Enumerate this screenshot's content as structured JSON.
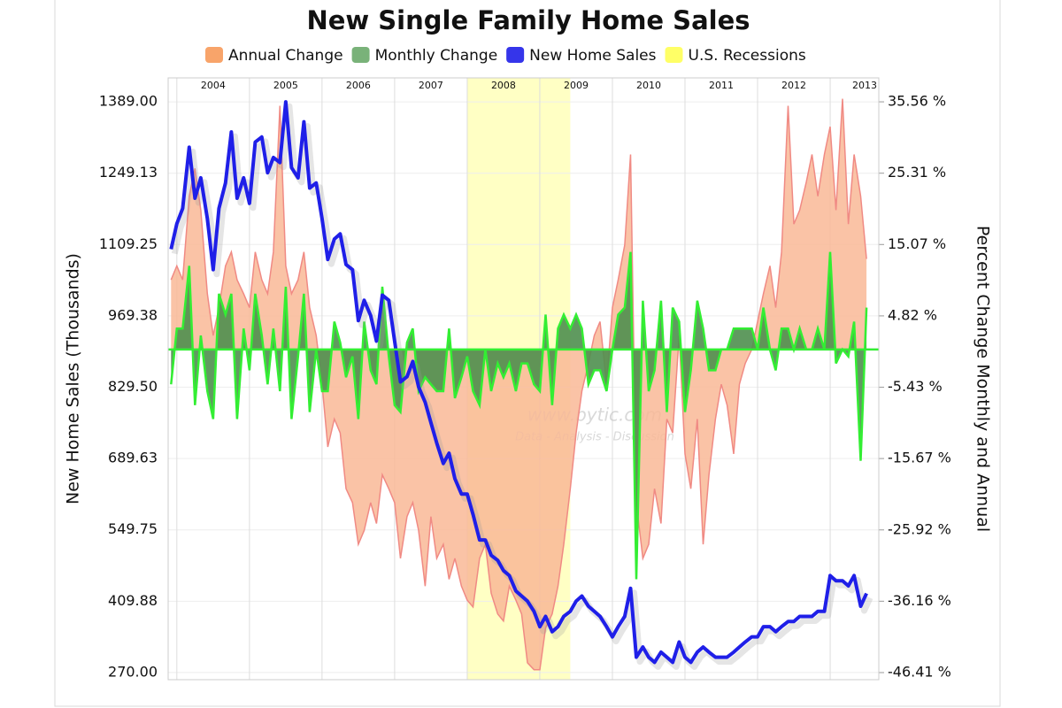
{
  "chart_data": {
    "type": "line",
    "title": "New Single Family Home Sales",
    "y_label": "New Home Sales (Thousands)",
    "y2_label": "Percent Change Monthly and Annual",
    "watermark": [
      "www.bytic.com",
      "Data - Analysis - Discussion"
    ],
    "grid": true,
    "xlim": [
      2003.88,
      2013.67
    ],
    "xticks": [
      2004,
      2005,
      2006,
      2007,
      2008,
      2009,
      2010,
      2011,
      2012,
      2013
    ],
    "ylim": [
      256,
      1436
    ],
    "yticks": [
      {
        "value": 1389,
        "label": "1389.00"
      },
      {
        "value": 1249.13,
        "label": "1249.13"
      },
      {
        "value": 1109.25,
        "label": "1109.25"
      },
      {
        "value": 969.38,
        "label": "969.38"
      },
      {
        "value": 829.5,
        "label": "829.50"
      },
      {
        "value": 689.63,
        "label": "689.63"
      },
      {
        "value": 549.75,
        "label": "549.75"
      },
      {
        "value": 409.88,
        "label": "409.88"
      },
      {
        "value": 270,
        "label": "270.00"
      }
    ],
    "y2lim": [
      -47.43,
      39.0
    ],
    "y2ticks": [
      {
        "value": 35.56,
        "label": "35.56 %"
      },
      {
        "value": 25.31,
        "label": "25.31 %"
      },
      {
        "value": 15.07,
        "label": "15.07 %"
      },
      {
        "value": 4.82,
        "label": "4.82 %"
      },
      {
        "value": -5.43,
        "label": "-5.43 %"
      },
      {
        "value": -15.67,
        "label": "-15.67 %"
      },
      {
        "value": -25.92,
        "label": "-25.92 %"
      },
      {
        "value": -36.16,
        "label": "-36.16 %"
      },
      {
        "value": -46.41,
        "label": "-46.41 %"
      }
    ],
    "recession": {
      "name": "U.S. Recessions",
      "color": "#ffff55",
      "start": 2008.0,
      "end": 2009.42
    },
    "x": [
      2003.92,
      2004.0,
      2004.08,
      2004.17,
      2004.25,
      2004.33,
      2004.42,
      2004.5,
      2004.58,
      2004.67,
      2004.75,
      2004.83,
      2004.92,
      2005.0,
      2005.08,
      2005.17,
      2005.25,
      2005.33,
      2005.42,
      2005.5,
      2005.58,
      2005.67,
      2005.75,
      2005.83,
      2005.92,
      2006.0,
      2006.08,
      2006.17,
      2006.25,
      2006.33,
      2006.42,
      2006.5,
      2006.58,
      2006.67,
      2006.75,
      2006.83,
      2006.92,
      2007.0,
      2007.08,
      2007.17,
      2007.25,
      2007.33,
      2007.42,
      2007.5,
      2007.58,
      2007.67,
      2007.75,
      2007.83,
      2007.92,
      2008.0,
      2008.08,
      2008.17,
      2008.25,
      2008.33,
      2008.42,
      2008.5,
      2008.58,
      2008.67,
      2008.75,
      2008.83,
      2008.92,
      2009.0,
      2009.08,
      2009.17,
      2009.25,
      2009.33,
      2009.42,
      2009.5,
      2009.58,
      2009.67,
      2009.75,
      2009.83,
      2009.92,
      2010.0,
      2010.08,
      2010.17,
      2010.25,
      2010.33,
      2010.42,
      2010.5,
      2010.58,
      2010.67,
      2010.75,
      2010.83,
      2010.92,
      2011.0,
      2011.08,
      2011.17,
      2011.25,
      2011.33,
      2011.42,
      2011.5,
      2011.58,
      2011.67,
      2011.75,
      2011.83,
      2011.92,
      2012.0,
      2012.08,
      2012.17,
      2012.25,
      2012.33,
      2012.42,
      2012.5,
      2012.58,
      2012.67,
      2012.75,
      2012.83,
      2012.92,
      2013.0,
      2013.08,
      2013.17,
      2013.25,
      2013.33,
      2013.42,
      2013.5
    ],
    "series": [
      {
        "name": "Annual Change",
        "color": "#f79a5a",
        "fill": "#f9b896",
        "stroke": "#f08a84",
        "kind": "area",
        "axis": "y2",
        "values": [
          10,
          12,
          10,
          22,
          26,
          20,
          8,
          2,
          6,
          12,
          14,
          10,
          8,
          6,
          14,
          10,
          8,
          14,
          35,
          12,
          8,
          10,
          14,
          6,
          2,
          -5,
          -14,
          -10,
          -12,
          -20,
          -22,
          -28,
          -26,
          -22,
          -25,
          -18,
          -20,
          -22,
          -30,
          -24,
          -22,
          -26,
          -34,
          -24,
          -30,
          -28,
          -33,
          -30,
          -34,
          -36,
          -37,
          -30,
          -28,
          -35,
          -38,
          -39,
          -34,
          -36,
          -38,
          -45,
          -46,
          -46,
          -40,
          -38,
          -34,
          -28,
          -20,
          -12,
          -6,
          -2,
          2,
          4,
          -5,
          6,
          10,
          15,
          28,
          -22,
          -30,
          -28,
          -20,
          -25,
          -10,
          -12,
          2,
          -15,
          -20,
          -10,
          -28,
          -18,
          -10,
          -5,
          -8,
          -15,
          -5,
          -2,
          0,
          4,
          8,
          12,
          6,
          14,
          35,
          18,
          20,
          24,
          28,
          22,
          28,
          32,
          20,
          36,
          18,
          28,
          22,
          13
        ]
      },
      {
        "name": "Monthly Change",
        "color": "#6aaa6a",
        "fill": "#4f8f4f",
        "stroke": "#33ee33",
        "kind": "area",
        "axis": "y2",
        "values": [
          -5,
          3,
          3,
          12,
          -8,
          2,
          -6,
          -10,
          8,
          5,
          8,
          -10,
          3,
          -3,
          8,
          2,
          -5,
          3,
          -6,
          9,
          -10,
          -1,
          8,
          -9,
          0,
          -6,
          -6,
          4,
          1,
          -4,
          -1,
          -10,
          4,
          -3,
          -5,
          9,
          -1,
          -8,
          -9,
          1,
          3,
          -6,
          -4,
          -5,
          -6,
          -6,
          3,
          -7,
          -4,
          -1,
          -6,
          -8,
          0,
          -6,
          -2,
          -4,
          -2,
          -6,
          -2,
          -2,
          -5,
          -6,
          5,
          -8,
          3,
          5,
          3,
          5,
          3,
          -5,
          -3,
          -3,
          -6,
          0,
          5,
          6,
          14,
          -33,
          7,
          -6,
          -3,
          7,
          -9,
          6,
          4,
          -9,
          -3,
          7,
          3,
          -3,
          -3,
          0,
          0,
          3,
          3,
          3,
          3,
          0,
          6,
          0,
          -3,
          3,
          3,
          0,
          3,
          0,
          0,
          3,
          0,
          14,
          -2,
          0,
          -1,
          4,
          -16,
          6
        ]
      },
      {
        "name": "New Home Sales",
        "color": "#1f1fe8",
        "kind": "line",
        "values": [
          1100,
          1150,
          1180,
          1300,
          1200,
          1240,
          1160,
          1060,
          1180,
          1230,
          1330,
          1200,
          1240,
          1190,
          1310,
          1320,
          1250,
          1280,
          1270,
          1389,
          1260,
          1240,
          1350,
          1220,
          1230,
          1160,
          1080,
          1120,
          1130,
          1070,
          1060,
          960,
          1000,
          970,
          920,
          1010,
          1000,
          920,
          840,
          850,
          880,
          830,
          800,
          760,
          720,
          680,
          700,
          650,
          620,
          620,
          580,
          530,
          530,
          500,
          490,
          470,
          460,
          430,
          420,
          410,
          390,
          360,
          380,
          350,
          360,
          380,
          390,
          410,
          420,
          400,
          390,
          380,
          360,
          340,
          360,
          380,
          435,
          300,
          320,
          300,
          290,
          310,
          300,
          290,
          330,
          300,
          290,
          310,
          320,
          310,
          300,
          300,
          300,
          310,
          320,
          330,
          340,
          340,
          360,
          360,
          350,
          360,
          370,
          370,
          380,
          380,
          380,
          390,
          390,
          460,
          450,
          450,
          440,
          460,
          400,
          425
        ]
      }
    ]
  }
}
